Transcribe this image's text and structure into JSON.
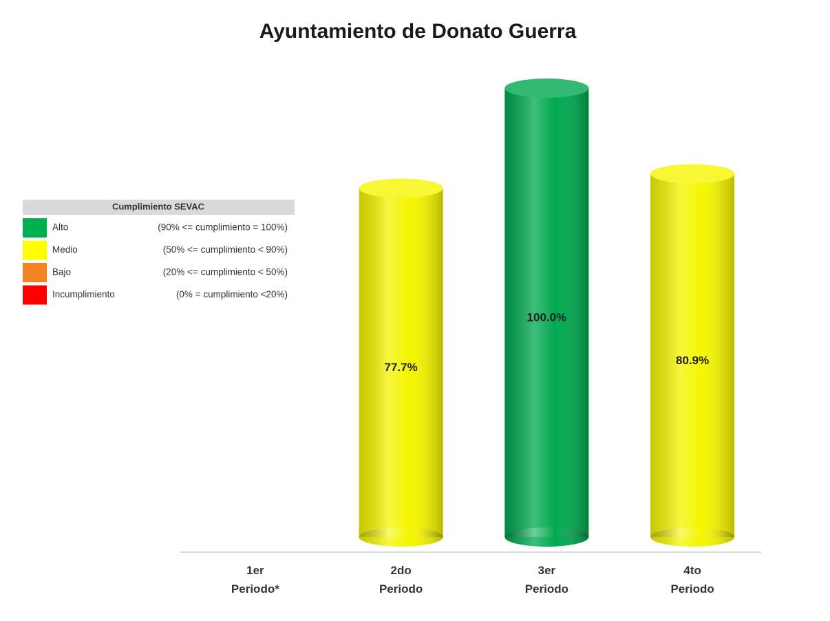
{
  "chart_data": {
    "type": "bar",
    "title": "Ayuntamiento de Donato Guerra",
    "categories": [
      "1er\nPeriodo*",
      "2do\nPeriodo",
      "3er\nPeriodo",
      "4to\nPeriodo"
    ],
    "values": [
      null,
      77.7,
      100.0,
      80.9
    ],
    "value_labels": [
      null,
      "77.7%",
      "100.0%",
      "80.9%"
    ],
    "colors": [
      null,
      "#f5f500",
      "#00a84f",
      "#f5f500"
    ],
    "ylim": [
      0,
      100
    ],
    "legend": {
      "title": "Cumplimiento SEVAC",
      "position": "left",
      "items": [
        {
          "name": "Alto",
          "color": "#00b050",
          "range": "(90% <= cumplimiento = 100%)"
        },
        {
          "name": "Medio",
          "color": "#ffff00",
          "range": "(50% <= cumplimiento < 90%)"
        },
        {
          "name": "Bajo",
          "color": "#f58220",
          "range": "(20% <= cumplimiento < 50%)"
        },
        {
          "name": "Incumplimiento",
          "color": "#ff0000",
          "range": "(0% = cumplimiento <20%)"
        }
      ]
    }
  }
}
